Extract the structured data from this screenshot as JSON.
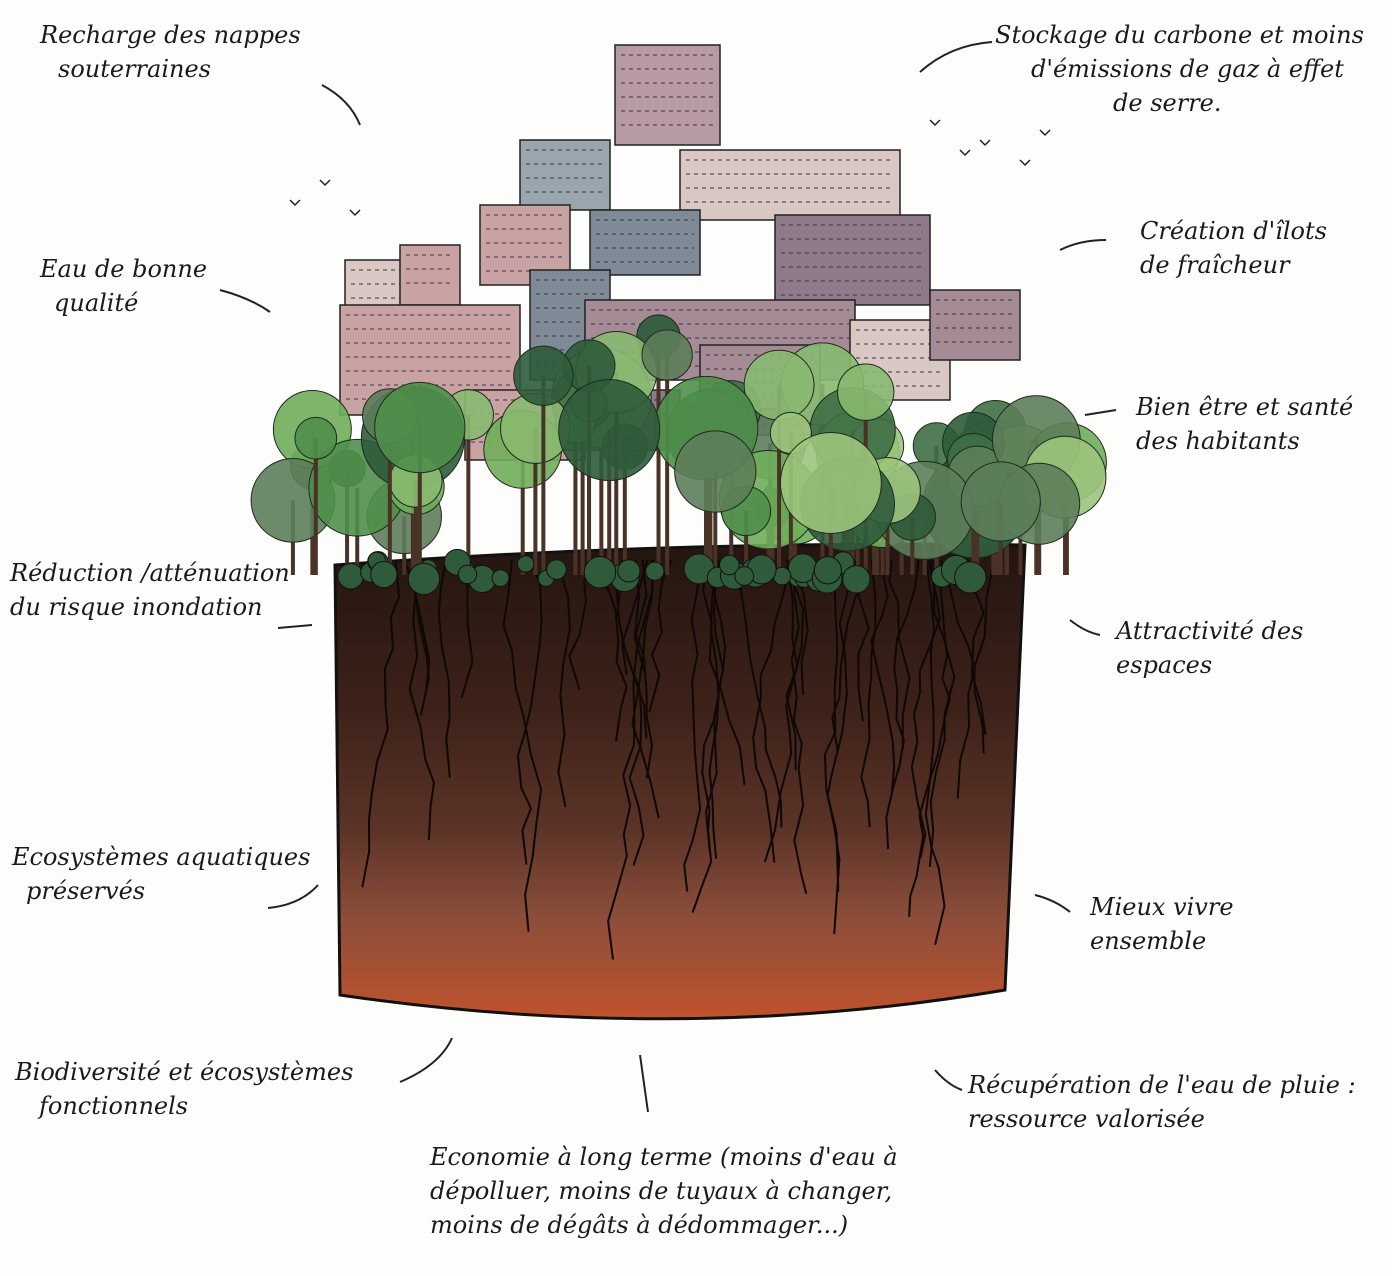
{
  "labels": [
    {
      "lines": [
        "Recharge des nappes",
        "souterraines"
      ]
    },
    {
      "lines": [
        "Stockage du carbone et moins",
        "d'émissions de gaz à effet",
        "de serre."
      ]
    },
    {
      "lines": [
        "Eau de bonne",
        "qualité"
      ]
    },
    {
      "lines": [
        "Création d'îlots",
        "de fraîcheur"
      ]
    },
    {
      "lines": [
        "Bien être et santé",
        "des habitants"
      ]
    },
    {
      "lines": [
        "Réduction /atténuation",
        "du risque inondation"
      ]
    },
    {
      "lines": [
        "Attractivité des",
        "espaces"
      ]
    },
    {
      "lines": [
        "Ecosystèmes aquatiques",
        "préservés"
      ]
    },
    {
      "lines": [
        "Mieux vivre",
        "ensemble"
      ]
    },
    {
      "lines": [
        "Biodiversité et écosystèmes",
        "fonctionnels"
      ]
    },
    {
      "lines": [
        "Récupération de l'eau de pluie :",
        "ressource valorisée"
      ]
    },
    {
      "lines": [
        "Economie à long terme (moins d'eau à",
        "dépolluer, moins de tuyaux à changer,",
        "moins de dégâts à dédommager...)"
      ]
    }
  ]
}
